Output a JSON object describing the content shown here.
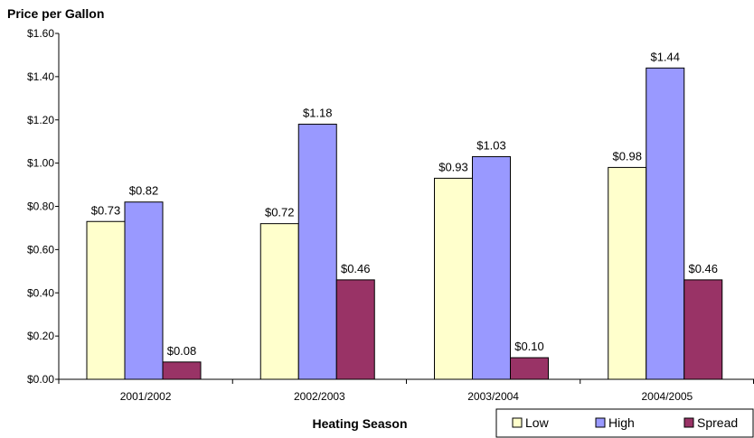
{
  "chart_data": {
    "type": "bar",
    "title": "",
    "ylabel": "Price per Gallon",
    "xlabel": "Heating Season",
    "categories": [
      "2001/2002",
      "2002/2003",
      "2003/2004",
      "2004/2005"
    ],
    "series": [
      {
        "name": "Low",
        "values": [
          0.73,
          0.72,
          0.93,
          0.98
        ],
        "labels": [
          "$0.73",
          "$0.72",
          "$0.93",
          "$0.98"
        ],
        "color": "#FFFFCC"
      },
      {
        "name": "High",
        "values": [
          0.82,
          1.18,
          1.03,
          1.44
        ],
        "labels": [
          "$0.82",
          "$1.18",
          "$1.03",
          "$1.44"
        ],
        "color": "#9999FF"
      },
      {
        "name": "Spread",
        "values": [
          0.08,
          0.46,
          0.1,
          0.46
        ],
        "labels": [
          "$0.08",
          "$0.46",
          "$0.10",
          "$0.46"
        ],
        "color": "#993366"
      }
    ],
    "ylim": [
      0,
      1.6
    ],
    "yticks": [
      0,
      0.2,
      0.4,
      0.6,
      0.8,
      1.0,
      1.2,
      1.4,
      1.6
    ],
    "ytick_labels": [
      "$0.00",
      "$0.20",
      "$0.40",
      "$0.60",
      "$0.80",
      "$1.00",
      "$1.20",
      "$1.40",
      "$1.60"
    ],
    "grid": false,
    "legend_position": "bottom-right"
  }
}
